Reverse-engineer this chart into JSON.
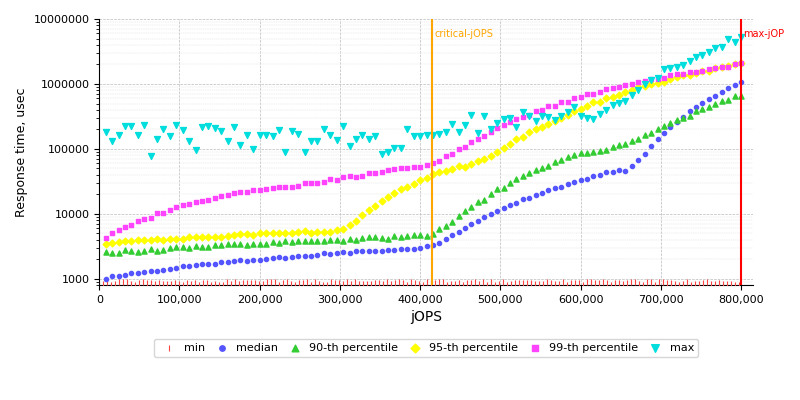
{
  "xlabel": "jOPS",
  "ylabel": "Response time, usec",
  "xlim": [
    0,
    815000
  ],
  "ylim_log": [
    800,
    10000000
  ],
  "x_ticks": [
    0,
    100000,
    200000,
    300000,
    400000,
    500000,
    600000,
    700000,
    800000
  ],
  "x_tick_labels": [
    "0",
    "100,000",
    "200,000",
    "300,000",
    "400,000",
    "500,000",
    "600,000",
    "700,000",
    "800,000"
  ],
  "critical_jops": 415000,
  "max_jops": 800000,
  "critical_label": "critical-jOPS",
  "max_label": "max-jOP",
  "bg_color": "#ffffff",
  "grid_color": "#bbbbbb",
  "series": {
    "min": {
      "color": "#ff4444",
      "marker": "s",
      "label": "min"
    },
    "median": {
      "color": "#5555ff",
      "marker": "o",
      "label": "median"
    },
    "p90": {
      "color": "#33cc33",
      "marker": "^",
      "label": "90-th percentile"
    },
    "p95": {
      "color": "#ffff00",
      "marker": "D",
      "label": "95-th percentile"
    },
    "p99": {
      "color": "#ff44ff",
      "marker": "s",
      "label": "99-th percentile"
    },
    "max": {
      "color": "#00dddd",
      "marker": "v",
      "label": "max"
    }
  }
}
